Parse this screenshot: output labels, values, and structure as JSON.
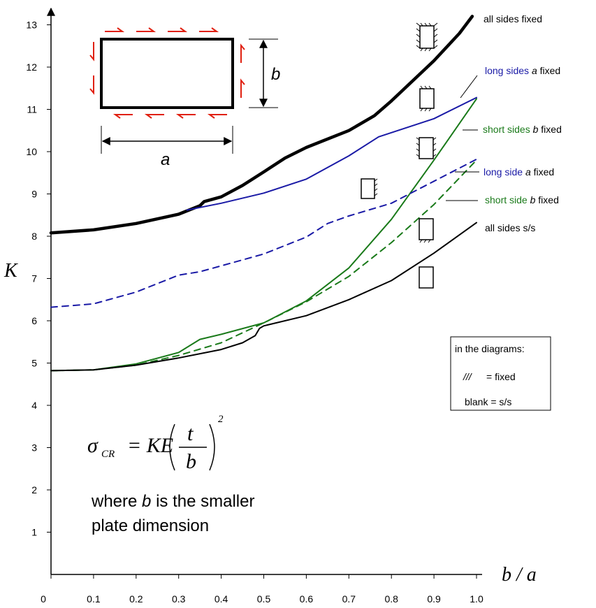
{
  "chart_data": {
    "type": "line",
    "title": "",
    "xlabel": "b / a",
    "ylabel": "K",
    "xlim": [
      0,
      1.0
    ],
    "ylim": [
      0,
      13
    ],
    "x_ticks": [
      "0",
      "0.1",
      "0.2",
      "0.3",
      "0.4",
      "0.5",
      "0.6",
      "0.7",
      "0.8",
      "0.9",
      "1.0"
    ],
    "y_ticks": [
      "1",
      "2",
      "3",
      "4",
      "5",
      "6",
      "7",
      "8",
      "9",
      "10",
      "11",
      "12",
      "13"
    ],
    "grid": false,
    "series": [
      {
        "name": "all sides fixed",
        "label_parts": [
          "all sides fixed"
        ],
        "color": "#000000",
        "style": "solid",
        "weight": "thick",
        "points": [
          [
            0,
            8.08
          ],
          [
            0.1,
            8.15
          ],
          [
            0.2,
            8.3
          ],
          [
            0.3,
            8.52
          ],
          [
            0.35,
            8.72
          ],
          [
            0.36,
            8.82
          ],
          [
            0.4,
            8.93
          ],
          [
            0.45,
            9.2
          ],
          [
            0.5,
            9.52
          ],
          [
            0.55,
            9.85
          ],
          [
            0.6,
            10.1
          ],
          [
            0.7,
            10.5
          ],
          [
            0.76,
            10.85
          ],
          [
            0.8,
            11.2
          ],
          [
            0.9,
            12.15
          ],
          [
            0.96,
            12.8
          ],
          [
            0.99,
            13.2
          ]
        ]
      },
      {
        "name": "long sides a fixed",
        "label_parts": [
          "long sides ",
          "a",
          " fixed"
        ],
        "color": "#1a1aa6",
        "style": "solid",
        "weight": "normal",
        "points": [
          [
            0.32,
            8.62
          ],
          [
            0.4,
            8.78
          ],
          [
            0.5,
            9.02
          ],
          [
            0.6,
            9.35
          ],
          [
            0.7,
            9.9
          ],
          [
            0.77,
            10.35
          ],
          [
            0.9,
            10.78
          ],
          [
            1.0,
            11.28
          ]
        ]
      },
      {
        "name": "short sides b fixed",
        "label_parts": [
          "short sides ",
          "b",
          " fixed"
        ],
        "color": "#1a7a1a",
        "style": "solid",
        "weight": "normal",
        "points": [
          [
            0,
            4.82
          ],
          [
            0.1,
            4.84
          ],
          [
            0.2,
            4.98
          ],
          [
            0.3,
            5.25
          ],
          [
            0.35,
            5.56
          ],
          [
            0.4,
            5.68
          ],
          [
            0.5,
            5.95
          ],
          [
            0.6,
            6.47
          ],
          [
            0.7,
            7.25
          ],
          [
            0.8,
            8.4
          ],
          [
            0.9,
            9.8
          ],
          [
            1.0,
            11.25
          ]
        ]
      },
      {
        "name": "long side a fixed",
        "label_parts": [
          "long side ",
          "a",
          " fixed"
        ],
        "color": "#1a1aa6",
        "style": "dashed",
        "weight": "normal",
        "points": [
          [
            0,
            6.32
          ],
          [
            0.1,
            6.4
          ],
          [
            0.2,
            6.68
          ],
          [
            0.3,
            7.08
          ],
          [
            0.35,
            7.16
          ],
          [
            0.4,
            7.3
          ],
          [
            0.5,
            7.58
          ],
          [
            0.6,
            7.98
          ],
          [
            0.65,
            8.3
          ],
          [
            0.7,
            8.48
          ],
          [
            0.8,
            8.78
          ],
          [
            0.9,
            9.3
          ],
          [
            1.0,
            9.82
          ]
        ]
      },
      {
        "name": "short side b fixed",
        "label_parts": [
          "short side ",
          "b",
          " fixed"
        ],
        "color": "#1a7a1a",
        "style": "dashed",
        "weight": "normal",
        "points": [
          [
            0,
            4.82
          ],
          [
            0.1,
            4.84
          ],
          [
            0.2,
            4.95
          ],
          [
            0.3,
            5.18
          ],
          [
            0.4,
            5.48
          ],
          [
            0.5,
            5.95
          ],
          [
            0.6,
            6.45
          ],
          [
            0.7,
            7.05
          ],
          [
            0.8,
            7.85
          ],
          [
            0.9,
            8.75
          ],
          [
            1.0,
            9.8
          ]
        ]
      },
      {
        "name": "all sides s/s",
        "label_parts": [
          "all sides s/s"
        ],
        "color": "#000000",
        "style": "solid",
        "weight": "normal",
        "points": [
          [
            0,
            4.82
          ],
          [
            0.1,
            4.84
          ],
          [
            0.2,
            4.95
          ],
          [
            0.3,
            5.12
          ],
          [
            0.4,
            5.32
          ],
          [
            0.45,
            5.48
          ],
          [
            0.48,
            5.65
          ],
          [
            0.49,
            5.82
          ],
          [
            0.5,
            5.88
          ],
          [
            0.6,
            6.12
          ],
          [
            0.7,
            6.5
          ],
          [
            0.8,
            6.95
          ],
          [
            0.9,
            7.6
          ],
          [
            1.0,
            8.32
          ]
        ]
      }
    ],
    "legend_box": {
      "title": "in the diagrams:",
      "fixed_symbol": "///",
      "fixed_text": "= fixed",
      "blank_text": "blank = s/s"
    },
    "inset": {
      "side_a": "a",
      "side_b": "b"
    },
    "formula": {
      "sigma": "σ",
      "subscript": "CR",
      "rhs": "= KE",
      "t": "t",
      "b": "b",
      "power": "2"
    },
    "note_lines": [
      "where ",
      "b",
      " is the smaller",
      "plate dimension"
    ]
  }
}
